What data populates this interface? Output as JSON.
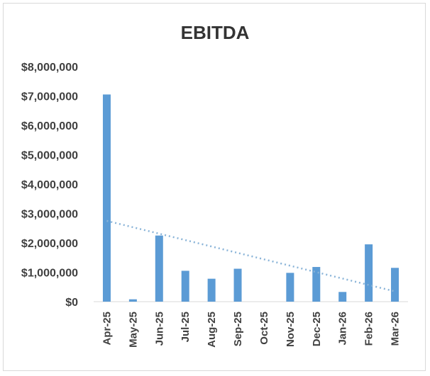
{
  "chart_data": {
    "type": "bar",
    "title": "EBITDA",
    "xlabel": "",
    "ylabel": "",
    "categories": [
      "Apr-25",
      "May-25",
      "Jun-25",
      "Jul-25",
      "Aug-25",
      "Sep-25",
      "Oct-25",
      "Nov-25",
      "Dec-25",
      "Jan-26",
      "Feb-26",
      "Mar-26"
    ],
    "values": [
      7050000,
      80000,
      2250000,
      1050000,
      780000,
      1120000,
      0,
      980000,
      1180000,
      330000,
      1950000,
      1150000
    ],
    "ylim": [
      0,
      8000000
    ],
    "yticks": [
      "$0",
      "$1,000,000",
      "$2,000,000",
      "$3,000,000",
      "$4,000,000",
      "$5,000,000",
      "$6,000,000",
      "$7,000,000",
      "$8,000,000"
    ],
    "grid": false,
    "legend": "none",
    "trendline": {
      "type": "linear",
      "start": 2750000,
      "end": 350000
    },
    "colors": {
      "bar": "#5b9bd5",
      "trendline": "#8ab4d8",
      "text": "#404040",
      "title": "#333333"
    }
  }
}
